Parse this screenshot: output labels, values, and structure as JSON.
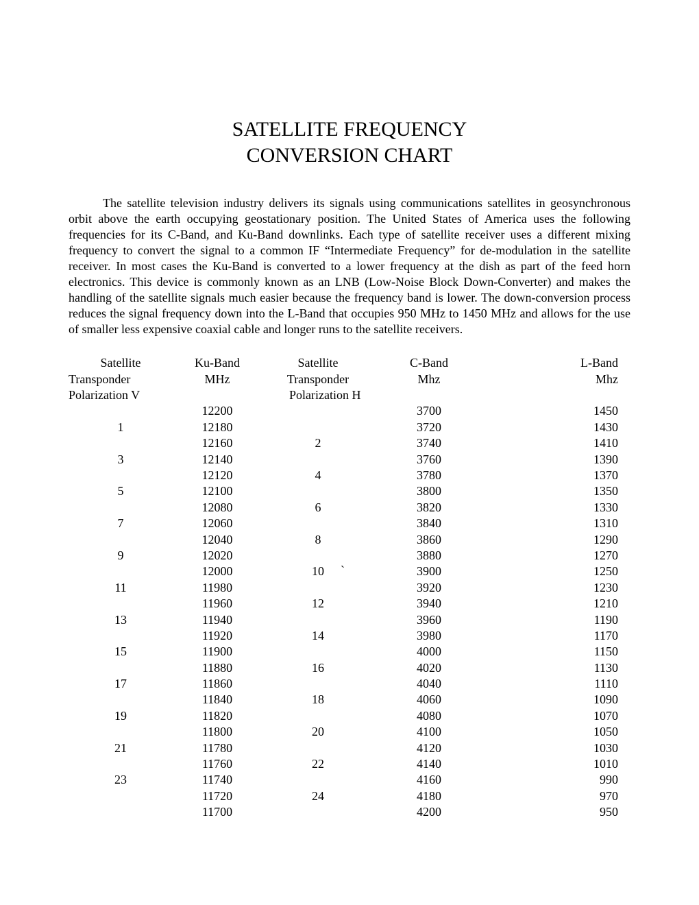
{
  "title": {
    "line1": "SATELLITE FREQUENCY",
    "line2": "CONVERSION CHART"
  },
  "paragraph": "The satellite television industry delivers its signals using communications satellites in geosynchronous orbit above the earth occupying geostationary position. The United States of America uses the following frequencies for its C-Band, and Ku-Band downlinks. Each type of satellite receiver uses a different mixing frequency to convert the signal to a common IF “Intermediate Frequency” for de-modulation in the satellite receiver. In most cases the Ku-Band is converted to a lower frequency at the dish as part of the feed horn electronics. This device is commonly known as an LNB (Low-Noise Block Down-Converter) and makes the handling of the satellite signals much easier because the frequency band is lower. The down-conversion process reduces the signal frequency down into the L-Band that occupies 950 MHz to 1450 MHz and allows for the use of smaller less expensive coaxial cable and longer runs to the satellite receivers.",
  "table": {
    "headers": {
      "col1_line1": "Satellite",
      "col1_line2": "Transponder",
      "col1_line3": "Polarization V",
      "col2_line1": "Ku-Band",
      "col2_line2": "MHz",
      "col3_line1": "Satellite",
      "col3_line2": "Transponder",
      "col3_line3": "Polarization H",
      "col4_line1": "C-Band",
      "col4_line2": "Mhz",
      "col5_line1": "L-Band",
      "col5_line2": "Mhz"
    },
    "rows": [
      {
        "tp_v": "",
        "ku": "12200",
        "tp_h": "",
        "c": "3700",
        "l": "1450"
      },
      {
        "tp_v": "1",
        "ku": "12180",
        "tp_h": "",
        "c": "3720",
        "l": "1430"
      },
      {
        "tp_v": "",
        "ku": "12160",
        "tp_h": "2",
        "c": "3740",
        "l": "1410"
      },
      {
        "tp_v": "3",
        "ku": "12140",
        "tp_h": "",
        "c": "3760",
        "l": "1390"
      },
      {
        "tp_v": "",
        "ku": "12120",
        "tp_h": "4",
        "c": "3780",
        "l": "1370"
      },
      {
        "tp_v": "5",
        "ku": "12100",
        "tp_h": "",
        "c": "3800",
        "l": "1350"
      },
      {
        "tp_v": "",
        "ku": "12080",
        "tp_h": "6",
        "c": "3820",
        "l": "1330"
      },
      {
        "tp_v": "7",
        "ku": "12060",
        "tp_h": "",
        "c": "3840",
        "l": "1310"
      },
      {
        "tp_v": "",
        "ku": "12040",
        "tp_h": "8",
        "c": "3860",
        "l": "1290"
      },
      {
        "tp_v": "9",
        "ku": "12020",
        "tp_h": "",
        "c": "3880",
        "l": "1270"
      },
      {
        "tp_v": "",
        "ku": "12000",
        "tp_h": "10",
        "c": "3900",
        "l": "1250",
        "tick": true
      },
      {
        "tp_v": "11",
        "ku": "11980",
        "tp_h": "",
        "c": "3920",
        "l": "1230"
      },
      {
        "tp_v": "",
        "ku": "11960",
        "tp_h": "12",
        "c": "3940",
        "l": "1210"
      },
      {
        "tp_v": "13",
        "ku": "11940",
        "tp_h": "",
        "c": "3960",
        "l": "1190"
      },
      {
        "tp_v": "",
        "ku": "11920",
        "tp_h": "14",
        "c": "3980",
        "l": "1170"
      },
      {
        "tp_v": "15",
        "ku": "11900",
        "tp_h": "",
        "c": "4000",
        "l": "1150"
      },
      {
        "tp_v": "",
        "ku": "11880",
        "tp_h": "16",
        "c": "4020",
        "l": "1130"
      },
      {
        "tp_v": "17",
        "ku": "11860",
        "tp_h": "",
        "c": "4040",
        "l": "1110"
      },
      {
        "tp_v": "",
        "ku": "11840",
        "tp_h": "18",
        "c": "4060",
        "l": "1090"
      },
      {
        "tp_v": "19",
        "ku": "11820",
        "tp_h": "",
        "c": "4080",
        "l": "1070"
      },
      {
        "tp_v": "",
        "ku": "11800",
        "tp_h": "20",
        "c": "4100",
        "l": "1050"
      },
      {
        "tp_v": "21",
        "ku": "11780",
        "tp_h": "",
        "c": "4120",
        "l": "1030"
      },
      {
        "tp_v": "",
        "ku": "11760",
        "tp_h": "22",
        "c": "4140",
        "l": "1010"
      },
      {
        "tp_v": "23",
        "ku": "11740",
        "tp_h": "",
        "c": "4160",
        "l": "990"
      },
      {
        "tp_v": "",
        "ku": "11720",
        "tp_h": "24",
        "c": "4180",
        "l": "970"
      },
      {
        "tp_v": "",
        "ku": "11700",
        "tp_h": "",
        "c": "4200",
        "l": "950"
      }
    ]
  },
  "styling": {
    "background_color": "#ffffff",
    "text_color": "#000000",
    "title_fontsize": 30,
    "body_fontsize": 18,
    "table_fontsize": 18,
    "font_family": "Times New Roman"
  }
}
